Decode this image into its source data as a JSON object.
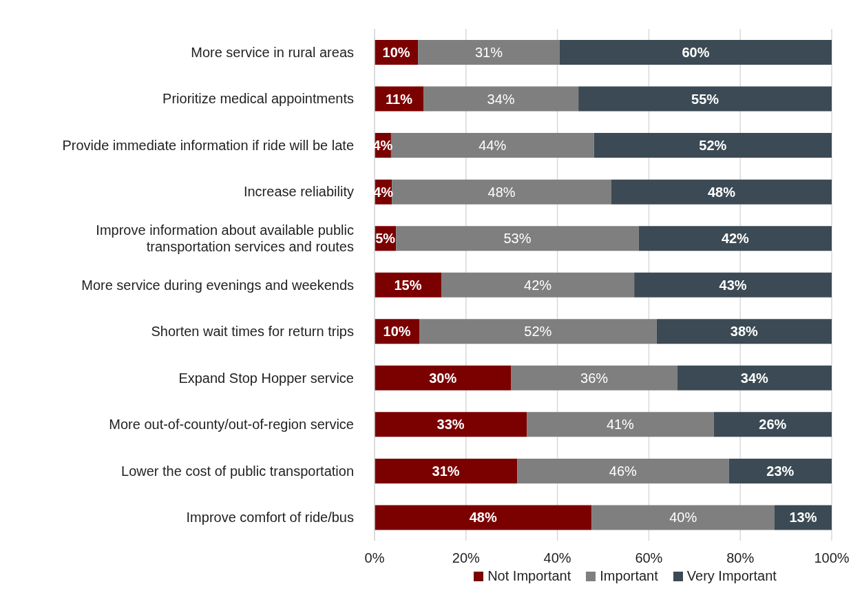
{
  "chart_data": {
    "type": "bar",
    "orientation": "horizontal",
    "stacked": true,
    "categories": [
      "More service in rural areas",
      "Prioritize medical appointments",
      "Provide immediate information if ride will be late",
      "Increase reliability",
      "Improve information about available public transportation services and routes",
      "More service during evenings and weekends",
      "Shorten wait times for return trips",
      "Expand Stop Hopper service",
      "More out-of-county/out-of-region service",
      "Lower the cost of public transportation",
      "Improve comfort of ride/bus"
    ],
    "series": [
      {
        "name": "Not Important",
        "color": "#7b0000",
        "values": [
          9.5,
          10.7,
          3.6,
          3.8,
          4.7,
          14.6,
          9.8,
          29.9,
          33.3,
          31.2,
          47.5
        ],
        "value_labels": [
          "10%",
          "11%",
          "4%",
          "4%",
          "5%",
          "15%",
          "10%",
          "30%",
          "33%",
          "31%",
          "48%"
        ]
      },
      {
        "name": "Important",
        "color": "#7f7f7f",
        "values": [
          31.0,
          33.9,
          44.4,
          48.0,
          53.1,
          42.2,
          51.9,
          36.3,
          40.9,
          46.3,
          40.0
        ],
        "value_labels": [
          "31%",
          "34%",
          "44%",
          "48%",
          "53%",
          "42%",
          "52%",
          "36%",
          "41%",
          "46%",
          "40%"
        ]
      },
      {
        "name": "Very Important",
        "color": "#3b4a54",
        "values": [
          59.5,
          55.4,
          52.0,
          48.2,
          42.2,
          43.2,
          38.3,
          33.8,
          25.8,
          22.5,
          12.5
        ],
        "value_labels": [
          "60%",
          "55%",
          "52%",
          "48%",
          "42%",
          "43%",
          "38%",
          "34%",
          "26%",
          "23%",
          "13%"
        ]
      }
    ],
    "xlim": [
      0,
      100
    ],
    "xticks": [
      {
        "value": 0,
        "label": "0%"
      },
      {
        "value": 20,
        "label": "20%"
      },
      {
        "value": 40,
        "label": "40%"
      },
      {
        "value": 60,
        "label": "60%"
      },
      {
        "value": 80,
        "label": "80%"
      },
      {
        "value": 100,
        "label": "100%"
      }
    ],
    "grid": "x",
    "legend": "bottom"
  }
}
